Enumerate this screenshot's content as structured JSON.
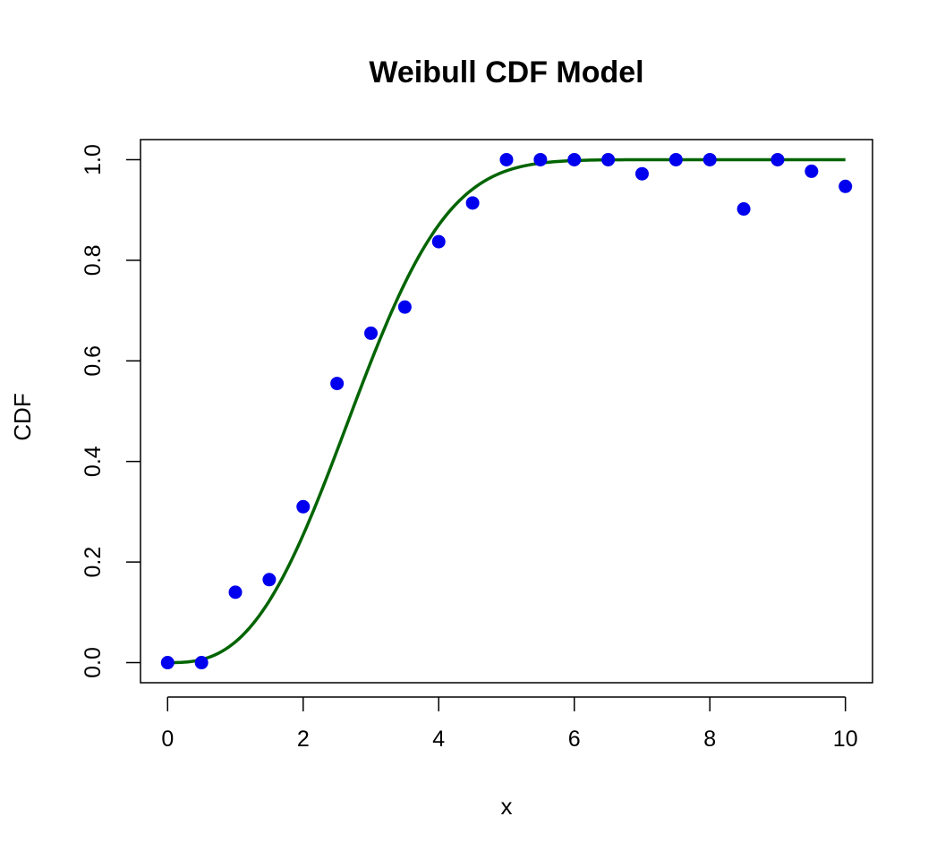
{
  "chart_data": {
    "type": "scatter",
    "title": "Weibull CDF Model",
    "xlabel": "x",
    "ylabel": "CDF",
    "xlim": [
      -0.4,
      10.4
    ],
    "ylim": [
      -0.04,
      1.04
    ],
    "xticks": [
      "0",
      "2",
      "4",
      "6",
      "8",
      "10"
    ],
    "yticks": [
      "0.0",
      "0.2",
      "0.4",
      "0.6",
      "0.8",
      "1.0"
    ],
    "grid": false,
    "colors": {
      "points": "#0000ee",
      "curve": "#006400"
    },
    "points": {
      "x": [
        0,
        0.5,
        1,
        1.5,
        2,
        2.5,
        3,
        3.5,
        4,
        4.5,
        5,
        5.5,
        6,
        6.5,
        7,
        7.5,
        8,
        8.5,
        9,
        9.5,
        10
      ],
      "y": [
        0.0,
        0.0,
        0.14,
        0.165,
        0.31,
        0.555,
        0.655,
        0.707,
        0.837,
        0.914,
        1.0,
        1.0,
        1.0,
        1.0,
        0.972,
        1.0,
        1.0,
        0.902,
        1.0,
        0.977,
        0.947
      ]
    },
    "curve": {
      "type": "weibull_cdf",
      "shape": 2.8,
      "scale": 3.1,
      "x_range": [
        0,
        10
      ]
    }
  }
}
